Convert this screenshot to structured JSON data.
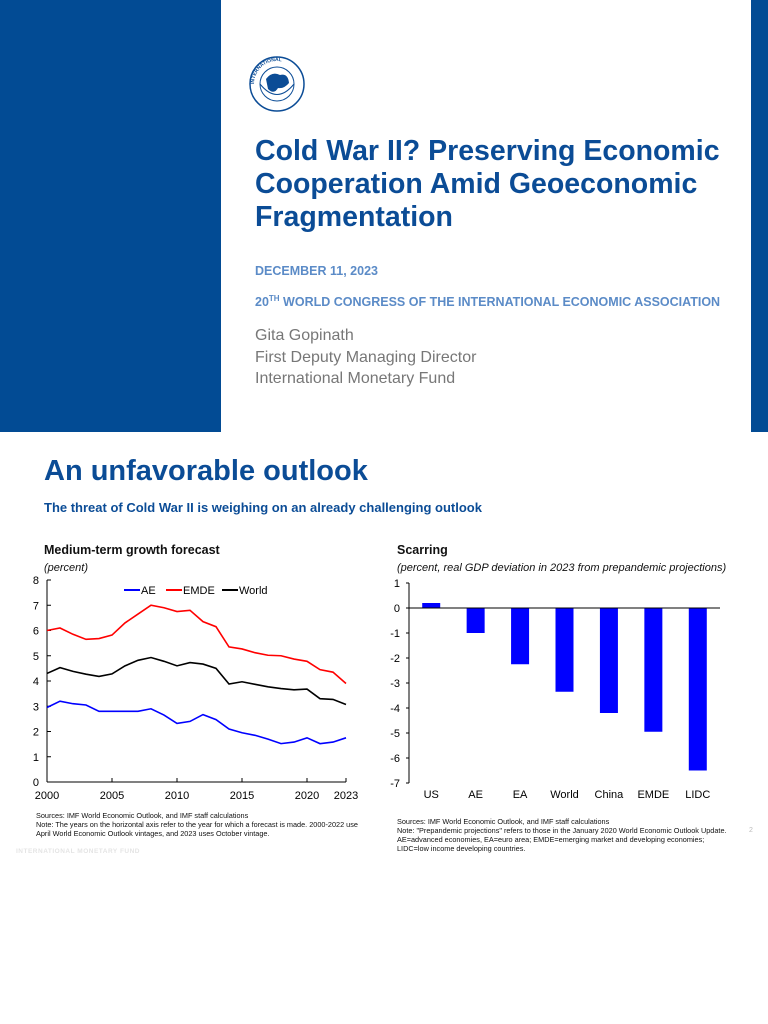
{
  "cover": {
    "logo_text": "INTERNATIONAL MONETARY FUND",
    "title": "Cold War II? Preserving Economic Cooperation Amid Geoeconomic Fragmentation",
    "date": "DECEMBER 11, 2023",
    "congress_num": "20",
    "congress_sup": "TH",
    "congress_rest": " WORLD CONGRESS OF THE INTERNATIONAL ECONOMIC ASSOCIATION",
    "speaker_name": "Gita Gopinath",
    "speaker_role": "First Deputy Managing Director",
    "speaker_org": "International Monetary Fund",
    "brand_color": "#024b94"
  },
  "slide2": {
    "title": "An unfavorable outlook",
    "subtitle": "The threat of Cold War II is weighing on an already challenging outlook",
    "footer": "INTERNATIONAL MONETARY FUND",
    "page_number": "2",
    "left_sources": "Sources: IMF World Economic Outlook, and IMF staff calculations",
    "left_note": "Note: The years on the horizontal axis refer to the year for which a forecast is made. 2000-2022 use April World Economic Outlook vintages, and 2023 uses October vintage.",
    "right_sources": "Sources: IMF World Economic Outlook, and IMF staff calculations",
    "right_note": "Note: \"Prepandemic projections\" refers to those in the January 2020 World Economic Outlook Update. AE=advanced economies, EA=euro area; EMDE=emerging market and developing economies; LIDC=low income developing countries."
  },
  "chart_data": [
    {
      "type": "line",
      "title": "Medium-term growth forecast",
      "ylabel": "(percent)",
      "ylim": [
        0,
        8
      ],
      "yticks": [
        "0",
        "1",
        "2",
        "3",
        "4",
        "5",
        "6",
        "7",
        "8"
      ],
      "xlim": [
        2000,
        2023
      ],
      "xticks": [
        "2000",
        "2005",
        "2010",
        "2015",
        "2020",
        "2023"
      ],
      "legend": "top",
      "x": [
        2000,
        2001,
        2002,
        2003,
        2004,
        2005,
        2006,
        2007,
        2008,
        2009,
        2010,
        2011,
        2012,
        2013,
        2014,
        2015,
        2016,
        2017,
        2018,
        2019,
        2020,
        2021,
        2022,
        2023
      ],
      "series": [
        {
          "name": "AE",
          "color": "#0000ff",
          "values": [
            2.95,
            3.2,
            3.1,
            3.05,
            2.8,
            2.8,
            2.8,
            2.8,
            2.9,
            2.65,
            2.32,
            2.4,
            2.67,
            2.47,
            2.1,
            1.95,
            1.85,
            1.7,
            1.52,
            1.58,
            1.75,
            1.52,
            1.58,
            1.75
          ]
        },
        {
          "name": "EMDE",
          "color": "#ff0000",
          "values": [
            6.0,
            6.1,
            5.85,
            5.65,
            5.68,
            5.82,
            6.3,
            6.65,
            7.0,
            6.9,
            6.75,
            6.8,
            6.35,
            6.15,
            5.35,
            5.27,
            5.12,
            5.02,
            5.0,
            4.87,
            4.78,
            4.45,
            4.35,
            3.9
          ]
        },
        {
          "name": "World",
          "color": "#000000",
          "values": [
            4.3,
            4.53,
            4.38,
            4.27,
            4.18,
            4.28,
            4.6,
            4.82,
            4.93,
            4.78,
            4.6,
            4.73,
            4.67,
            4.5,
            3.88,
            3.97,
            3.87,
            3.77,
            3.7,
            3.65,
            3.68,
            3.3,
            3.27,
            3.07
          ]
        }
      ]
    },
    {
      "type": "bar",
      "title": "Scarring",
      "ylabel": "(percent, real GDP deviation in 2023 from prepandemic projections)",
      "ylim": [
        -7,
        1
      ],
      "yticks": [
        "1",
        "0",
        "-1",
        "-2",
        "-3",
        "-4",
        "-5",
        "-6",
        "-7"
      ],
      "categories": [
        "US",
        "AE",
        "EA",
        "World",
        "China",
        "EMDE",
        "LIDC"
      ],
      "values": [
        0.2,
        -1.0,
        -2.25,
        -3.35,
        -4.2,
        -4.95,
        -6.5
      ],
      "color": "#0000ff"
    }
  ]
}
